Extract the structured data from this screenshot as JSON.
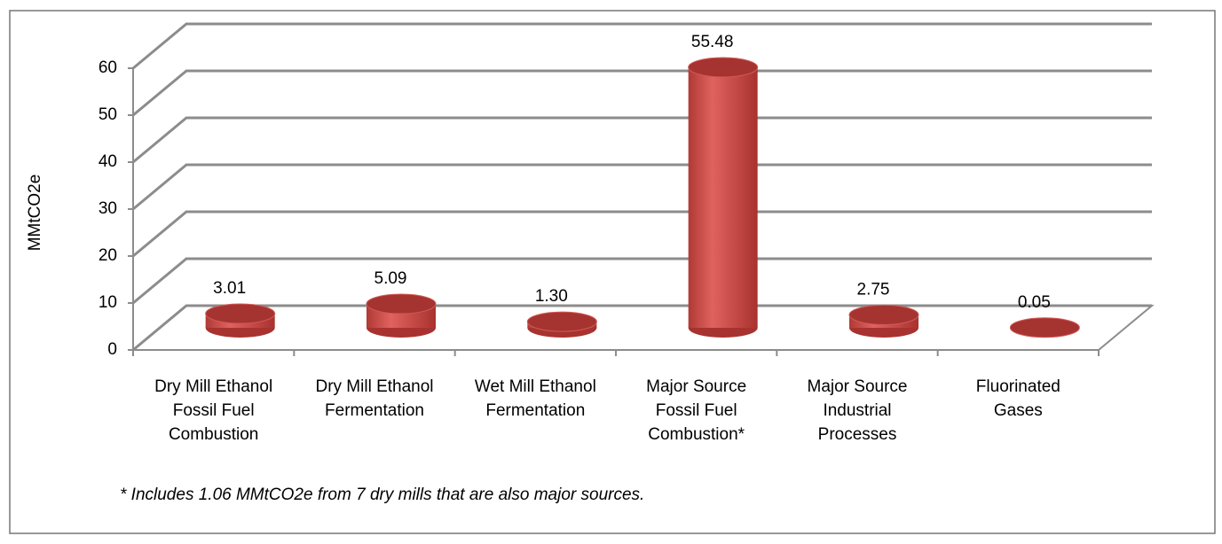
{
  "chart_data": {
    "type": "bar",
    "y_label": "MMtCO2e",
    "annotation": "* Includes 1.06 MMtCO2e from 7 dry mills that are also major sources.",
    "categories": [
      "Dry Mill Ethanol Fossil Fuel Combustion",
      "Dry Mill Ethanol Fermentation",
      "Wet Mill Ethanol Fermentation",
      "Major Source Fossil Fuel Combustion*",
      "Major Source Industrial Processes",
      "Fluorinated Gases"
    ],
    "values": [
      3.01,
      5.09,
      1.3,
      55.48,
      2.75,
      0.05
    ],
    "value_labels": [
      "3.01",
      "5.09",
      "1.30",
      "55.48",
      "2.75",
      "0.05"
    ],
    "color": "#c0504d",
    "ylim": [
      0,
      60
    ],
    "yticks": [
      0,
      10,
      20,
      30,
      40,
      50,
      60
    ],
    "grid": true
  }
}
